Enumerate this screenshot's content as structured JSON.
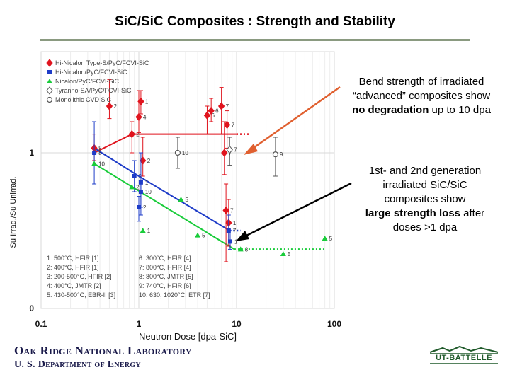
{
  "title": "SiC/SiC Composites : Strength and Stability",
  "notes": {
    "note1_line1": "Bend strength of irradiated",
    "note1_line2": "“advanced” composites show",
    "note1_bold": "no degradation",
    "note1_tail": " up to 10 dpa",
    "note2_line1": "1st- and 2nd generation",
    "note2_line2": "irradiated SiC/SiC",
    "note2_line3": "composites show",
    "note2_bold": "large strength loss",
    "note2_tail": " after",
    "note2_line5": "doses >1 dpa"
  },
  "footer": {
    "org_line1": "Oak Ridge National Laboratory",
    "org_line2": "U. S. Department of Energy",
    "logo_text": "UT-BATTELLE"
  },
  "colors": {
    "red": "#e0141e",
    "blue": "#1e3cc8",
    "green": "#19cc3a",
    "black": "#000000",
    "arrow": "#e06030"
  },
  "chart_data": {
    "type": "scatter",
    "xscale": "log",
    "xlim": [
      0.1,
      100
    ],
    "ylim": [
      0,
      1.65
    ],
    "xlabel": "Neutron Dose [dpa-SiC]",
    "ylabel": "Su Irrad./Su Unirrad.",
    "xticks": [
      "0.1",
      "1",
      "10",
      "100"
    ],
    "yticks": [
      "0",
      "1"
    ],
    "legend": [
      {
        "label": "Hi-Nicalon Type-S/PyC/FCVI-SiC",
        "marker": "diamond",
        "color": "#e0141e",
        "filled": true
      },
      {
        "label": "Hi-Nicalon/PyC/FCVI-SiC",
        "marker": "square",
        "color": "#1e3cc8",
        "filled": true
      },
      {
        "label": "Nicalon/PyC/FCVI-SiC",
        "marker": "triangle",
        "color": "#19cc3a",
        "filled": true
      },
      {
        "label": "Tyranno-SA/PyC/FCVI-SiC",
        "marker": "diamond",
        "color": "#555555",
        "filled": false
      },
      {
        "label": "Monolithic CVD SiC",
        "marker": "circle",
        "color": "#555555",
        "filled": false
      }
    ],
    "conditions": [
      "1: 500°C, HFIR [1]",
      "2: 400°C, HFIR [1]",
      "3: 200-500°C, HFIR [2]",
      "4: 400°C, JMTR [2]",
      "5: 430-500°C, EBR-II [3]",
      "6: 300°C, HFIR [4]",
      "7: 800°C, HFIR [4]",
      "8: 800°C, JMTR [5]",
      "9: 740°C, HFIR [6]",
      "10: 630, 1020°C, ETR [7]"
    ],
    "series": [
      {
        "name": "Hi-Nicalon Type-S/PyC/FCVI-SiC",
        "color": "#e0141e",
        "marker": "diamond",
        "points": [
          {
            "x": 0.35,
            "y": 1.03,
            "lo": 0.95,
            "hi": 1.12,
            "label": "8"
          },
          {
            "x": 0.5,
            "y": 1.3,
            "lo": 1.22,
            "hi": 1.47,
            "label": "2"
          },
          {
            "x": 0.85,
            "y": 1.12,
            "lo": 1.0,
            "hi": 1.2,
            "label": "2"
          },
          {
            "x": 1.0,
            "y": 1.23,
            "lo": 1.13,
            "hi": 1.4,
            "label": "4"
          },
          {
            "x": 1.05,
            "y": 1.33,
            "lo": 1.25,
            "hi": 1.4,
            "label": "1"
          },
          {
            "x": 1.1,
            "y": 0.95,
            "lo": 0.85,
            "hi": 1.1,
            "label": "2"
          },
          {
            "x": 5.0,
            "y": 1.24,
            "lo": 1.12,
            "hi": 1.3,
            "label": "6"
          },
          {
            "x": 5.5,
            "y": 1.27,
            "lo": 1.2,
            "hi": 1.35,
            "label": "6"
          },
          {
            "x": 7.0,
            "y": 1.3,
            "lo": 1.12,
            "hi": 1.42,
            "label": "7"
          },
          {
            "x": 7.5,
            "y": 1.0,
            "lo": 0.86,
            "hi": 1.2,
            "label": "7"
          },
          {
            "x": 7.8,
            "y": 0.63,
            "lo": 0.3,
            "hi": 0.8,
            "label": "7"
          },
          {
            "x": 8.0,
            "y": 1.18,
            "lo": 1.03,
            "hi": 1.27,
            "label": "7"
          },
          {
            "x": 8.3,
            "y": 0.55,
            "lo": 0.4,
            "hi": 0.7,
            "label": "1"
          }
        ]
      },
      {
        "name": "Hi-Nicalon/PyC/FCVI-SiC",
        "color": "#1e3cc8",
        "marker": "square",
        "points": [
          {
            "x": 0.35,
            "y": 1.0,
            "lo": 0.8,
            "hi": 1.2,
            "label": "8"
          },
          {
            "x": 0.9,
            "y": 0.85,
            "lo": 0.75,
            "hi": 0.95,
            "label": "2"
          },
          {
            "x": 1.05,
            "y": 0.81,
            "lo": 0.6,
            "hi": 1.0,
            "label": "1"
          },
          {
            "x": 1.0,
            "y": 0.65,
            "lo": 0.56,
            "hi": 0.72,
            "label": "2"
          },
          {
            "x": 1.05,
            "y": 0.75,
            "lo": 0.65,
            "hi": 0.82,
            "label": "10"
          },
          {
            "x": 8.3,
            "y": 0.5,
            "lo": 0.42,
            "hi": 0.6,
            "label": "7"
          },
          {
            "x": 8.6,
            "y": 0.43,
            "lo": 0.38,
            "hi": 0.5,
            "label": "1"
          }
        ]
      },
      {
        "name": "Nicalon/PyC/FCVI-SiC",
        "color": "#19cc3a",
        "marker": "triangle",
        "points": [
          {
            "x": 0.35,
            "y": 0.93,
            "label": "10"
          },
          {
            "x": 0.85,
            "y": 0.78,
            "label": "2"
          },
          {
            "x": 1.1,
            "y": 0.5,
            "label": "1"
          },
          {
            "x": 2.7,
            "y": 0.7,
            "label": "5"
          },
          {
            "x": 4.0,
            "y": 0.47,
            "label": "5"
          },
          {
            "x": 11.0,
            "y": 0.38,
            "label": "3"
          },
          {
            "x": 30.0,
            "y": 0.35,
            "label": "5"
          },
          {
            "x": 80.0,
            "y": 0.45,
            "label": "5"
          }
        ]
      },
      {
        "name": "Tyranno-SA/PyC/FCVI-SiC",
        "color": "#555555",
        "marker": "diamond-open",
        "points": [
          {
            "x": 8.5,
            "y": 1.02,
            "lo": 0.92,
            "hi": 1.1,
            "label": "7"
          }
        ]
      },
      {
        "name": "Monolithic CVD SiC",
        "color": "#555555",
        "marker": "circle-open",
        "points": [
          {
            "x": 2.5,
            "y": 1.0,
            "lo": 0.9,
            "hi": 1.1,
            "label": "10"
          },
          {
            "x": 25.0,
            "y": 0.99,
            "lo": 0.85,
            "hi": 1.1,
            "label": "9"
          }
        ]
      }
    ],
    "trend_lines": [
      {
        "name": "advanced composites",
        "color": "#e0141e",
        "points": [
          [
            0.35,
            1.0
          ],
          [
            0.85,
            1.12
          ],
          [
            10.0,
            1.12
          ]
        ],
        "dotted_to": [
          14.0,
          1.12
        ]
      },
      {
        "name": "Hi-Nicalon composites",
        "color": "#1e3cc8",
        "points": [
          [
            0.35,
            1.03
          ],
          [
            1.0,
            0.85
          ],
          [
            8.5,
            0.5
          ]
        ],
        "dotted_to": [
          11.0,
          0.5
        ]
      },
      {
        "name": "Nicalon composites",
        "color": "#19cc3a",
        "points": [
          [
            0.35,
            0.93
          ],
          [
            9.5,
            0.38
          ]
        ],
        "dotted_to": [
          80.0,
          0.38
        ]
      }
    ]
  }
}
